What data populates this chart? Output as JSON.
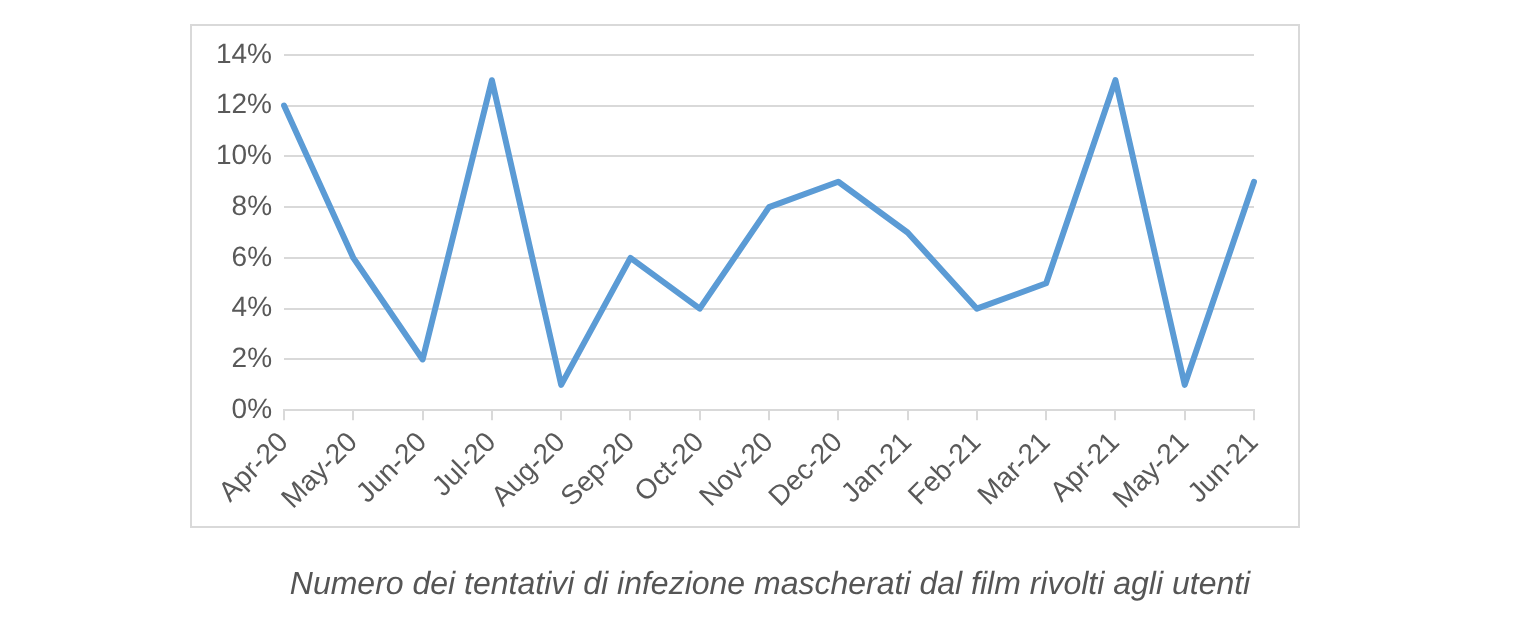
{
  "chart_data": {
    "type": "line",
    "categories": [
      "Apr-20",
      "May-20",
      "Jun-20",
      "Jul-20",
      "Aug-20",
      "Sep-20",
      "Oct-20",
      "Nov-20",
      "Dec-20",
      "Jan-21",
      "Feb-21",
      "Mar-21",
      "Apr-21",
      "May-21",
      "Jun-21"
    ],
    "series": [
      {
        "color": "#5b9bd5",
        "values": [
          12,
          6,
          2,
          13,
          1,
          6,
          4,
          8,
          9,
          7,
          4,
          5,
          13,
          1,
          9
        ]
      }
    ],
    "ylim": [
      0,
      14
    ],
    "yticks": [
      {
        "value": 0,
        "label": "0%"
      },
      {
        "value": 2,
        "label": "2%"
      },
      {
        "value": 4,
        "label": "4%"
      },
      {
        "value": 6,
        "label": "6%"
      },
      {
        "value": 8,
        "label": "8%"
      },
      {
        "value": 10,
        "label": "10%"
      },
      {
        "value": 12,
        "label": "12%"
      },
      {
        "value": 14,
        "label": "14%"
      }
    ],
    "grid": "y",
    "legend": false,
    "marker": "none",
    "line_style": "solid",
    "annotations": [
      "Numero dei tentativi di infezione mascherati dal film rivolti agli utenti"
    ]
  }
}
